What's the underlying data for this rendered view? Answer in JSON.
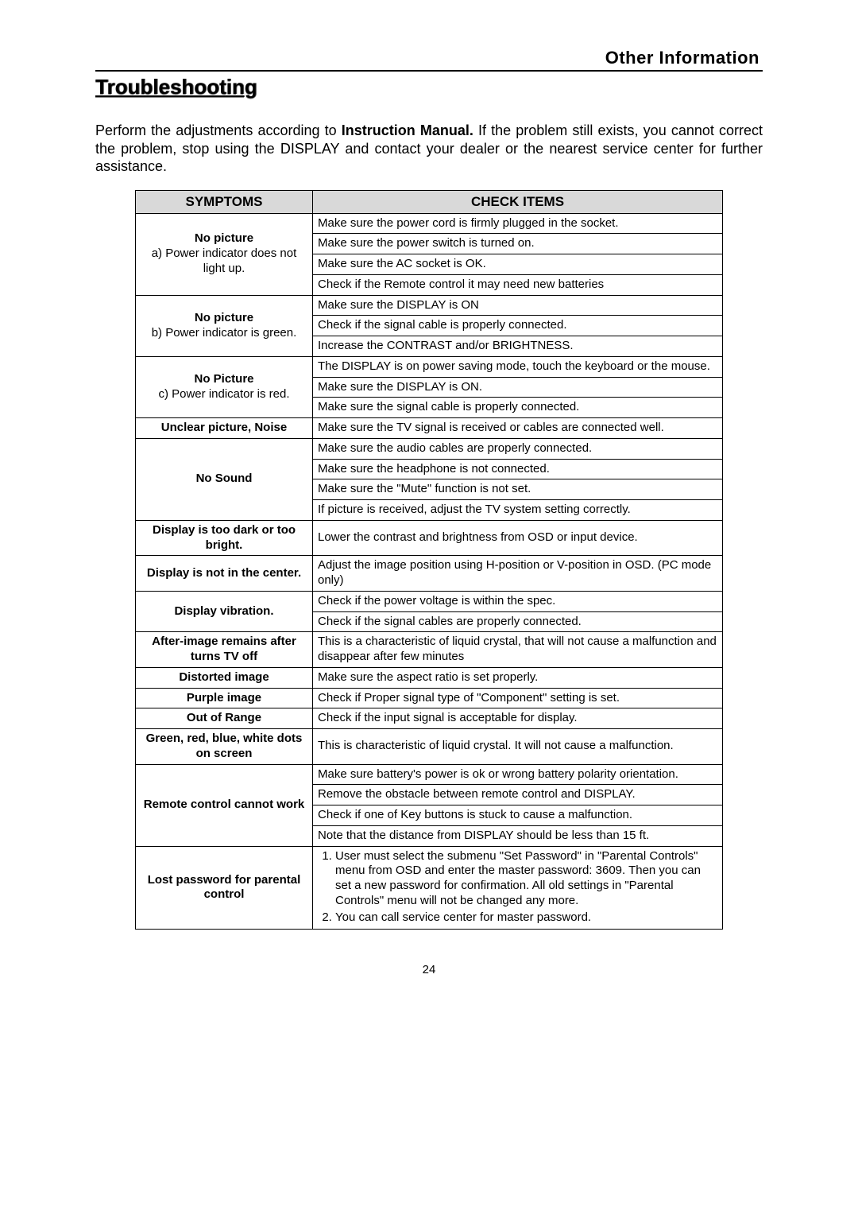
{
  "header": {
    "section_label": "Other Information",
    "title": "Troubleshooting"
  },
  "intro": {
    "pre": "Perform the adjustments according to ",
    "bold": "Instruction Manual.",
    "post": " If the problem still exists, you cannot correct the problem, stop using the DISPLAY and contact your dealer or the nearest service center for further assistance."
  },
  "table": {
    "headers": {
      "symptoms": "SYMPTOMS",
      "check": "CHECK ITEMS"
    },
    "groups": [
      {
        "symptom_bold": "No picture",
        "symptom_sub": "a) Power indicator does not light up.",
        "items": [
          "Make sure the power cord is firmly plugged in the socket.",
          "Make sure the power switch is turned on.",
          "Make sure the AC socket is OK.",
          "Check if the Remote control it may need new batteries"
        ]
      },
      {
        "symptom_bold": "No picture",
        "symptom_sub": "b) Power indicator is green.",
        "items": [
          "Make sure the DISPLAY is ON",
          "Check if the signal cable is properly connected.",
          "Increase the CONTRAST and/or BRIGHTNESS."
        ]
      },
      {
        "symptom_bold": "No Picture",
        "symptom_sub": "c) Power indicator is red.",
        "items": [
          "The DISPLAY is on power saving mode, touch the keyboard or the mouse.",
          "Make sure the DISPLAY is ON.",
          "Make sure the signal cable is properly connected."
        ]
      },
      {
        "symptom_bold": "Unclear picture, Noise",
        "symptom_sub": "",
        "items": [
          "Make sure the TV signal is received or cables are connected well."
        ]
      },
      {
        "symptom_bold": "No Sound",
        "symptom_sub": "",
        "items": [
          "Make sure the audio cables are properly connected.",
          "Make sure the headphone is not connected.",
          "Make sure the \"Mute\" function is not set.",
          "If picture is received, adjust the TV system setting correctly."
        ]
      },
      {
        "symptom_bold": "Display is too dark or too bright.",
        "symptom_sub": "",
        "items": [
          "Lower the contrast and brightness from OSD or input device."
        ]
      },
      {
        "symptom_bold": "Display is not in the center.",
        "symptom_sub": "",
        "items": [
          "Adjust the image position using H-position or V-position in OSD. (PC mode only)"
        ]
      },
      {
        "symptom_bold": "Display vibration.",
        "symptom_sub": "",
        "items": [
          "Check if the power voltage is within the spec.",
          "Check if the signal cables are properly connected."
        ]
      },
      {
        "symptom_bold": "After-image remains after turns TV off",
        "symptom_sub": "",
        "items": [
          "This is a characteristic of liquid crystal, that will not cause a malfunction and disappear after few minutes"
        ]
      },
      {
        "symptom_bold": "Distorted image",
        "symptom_sub": "",
        "items": [
          "Make sure the aspect ratio is set properly."
        ]
      },
      {
        "symptom_bold": "Purple image",
        "symptom_sub": "",
        "items": [
          "Check if Proper signal type of \"Component\" setting is set."
        ]
      },
      {
        "symptom_bold": "Out of Range",
        "symptom_sub": "",
        "items": [
          "Check if the input signal is acceptable for display."
        ]
      },
      {
        "symptom_bold": "Green, red, blue, white dots on screen",
        "symptom_sub": "",
        "items": [
          "This is characteristic of liquid crystal. It will not cause a malfunction."
        ]
      },
      {
        "symptom_bold": "Remote control cannot work",
        "symptom_sub": "",
        "items": [
          "Make sure battery's power is ok or wrong battery polarity orientation.",
          "Remove the obstacle between remote control and DISPLAY.",
          "Check if one of Key buttons is stuck to cause a malfunction.",
          "Note that the distance from DISPLAY should be less than 15 ft."
        ]
      }
    ],
    "lost_password": {
      "symptom_bold": "Lost password for parental control",
      "li1": "User must select the submenu \"Set Password\" in \"Parental Controls\" menu from OSD and enter the master password: 3609. Then you can set a new password for confirmation. All old settings in \"Parental Controls\" menu will not be changed any more.",
      "li2": "You can call service center for master password."
    }
  },
  "page_number": "24"
}
